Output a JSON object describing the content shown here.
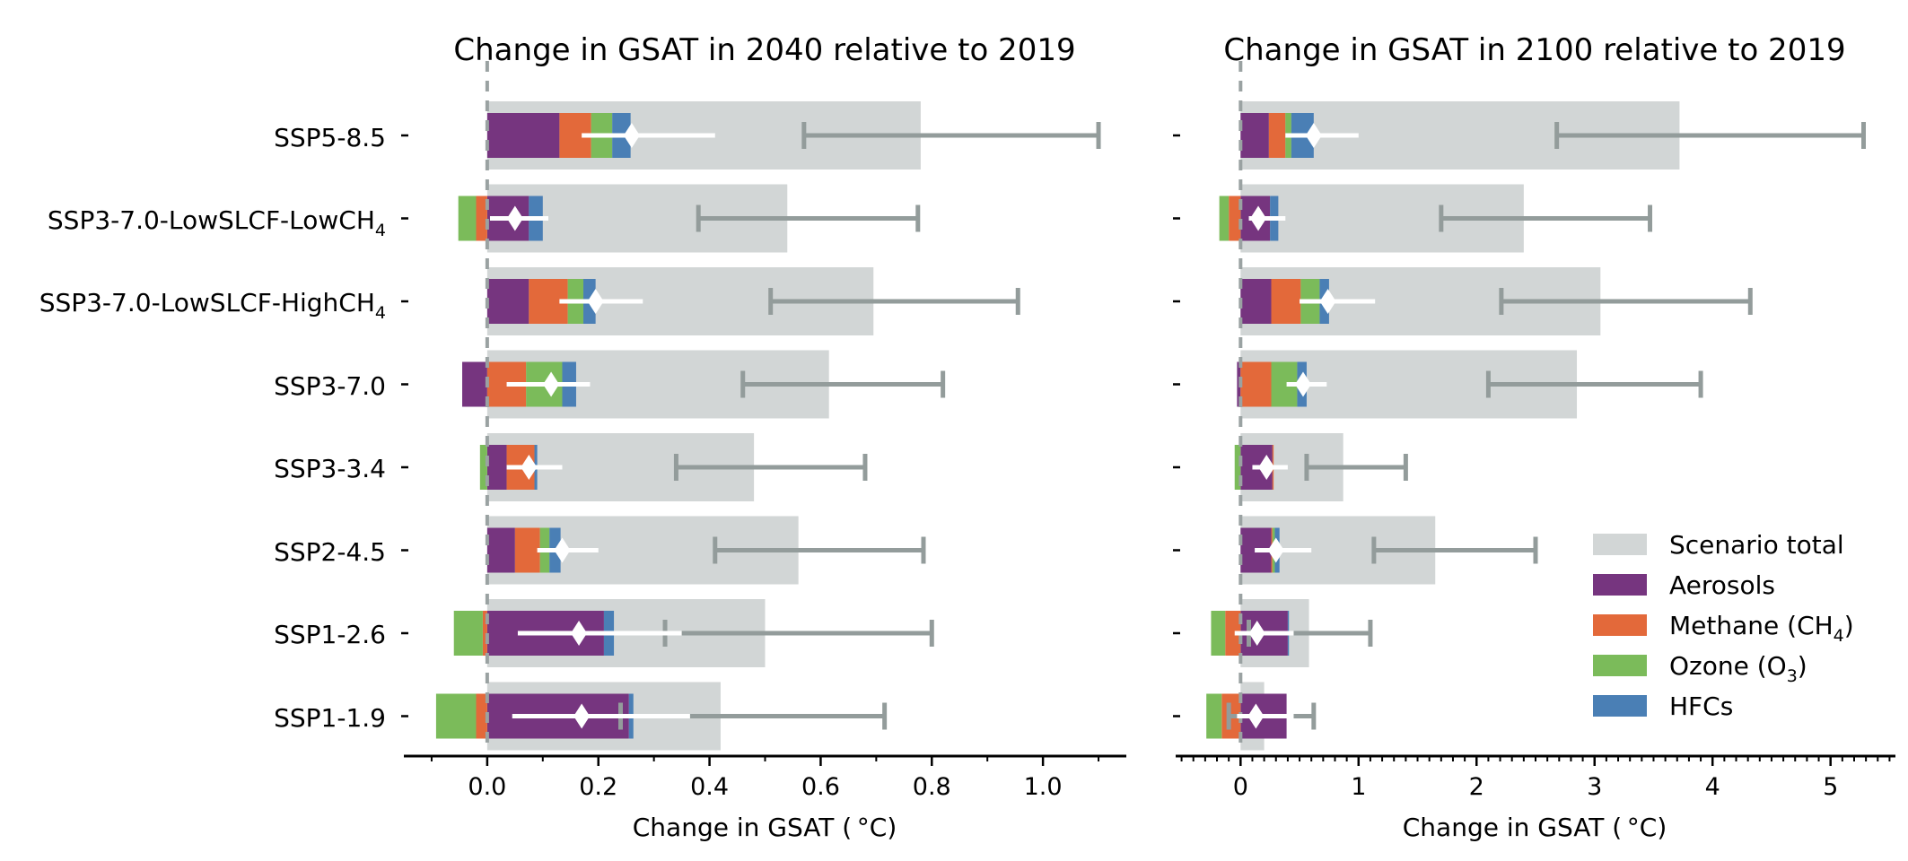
{
  "chart_data": {
    "type": "bar",
    "orientation": "horizontal",
    "stacked": true,
    "categories": [
      {
        "base": "SSP5-8.5",
        "sub": ""
      },
      {
        "base": "SSP3-7.0-LowSLCF-LowCH",
        "sub": "4"
      },
      {
        "base": "SSP3-7.0-LowSLCF-HighCH",
        "sub": "4"
      },
      {
        "base": "SSP3-7.0",
        "sub": ""
      },
      {
        "base": "SSP3-3.4",
        "sub": ""
      },
      {
        "base": "SSP2-4.5",
        "sub": ""
      },
      {
        "base": "SSP1-2.6",
        "sub": ""
      },
      {
        "base": "SSP1-1.9",
        "sub": ""
      }
    ],
    "colors": {
      "total": "#d2d6d6",
      "aerosols": "#76357f",
      "methane": "#e3693a",
      "ozone": "#7bbb5a",
      "hfcs": "#4a7fb5",
      "error": "#939c9b",
      "marker": "#ffffff",
      "zero_line": "#9aa2a2"
    },
    "legend": {
      "position": "lower-right",
      "entries": [
        {
          "key": "total",
          "label": "Scenario total",
          "sub": "",
          "suffix": ""
        },
        {
          "key": "aerosols",
          "label": "Aerosols",
          "sub": "",
          "suffix": ""
        },
        {
          "key": "methane",
          "label": "Methane (CH",
          "sub": "4",
          "suffix": ")"
        },
        {
          "key": "ozone",
          "label": "Ozone (O",
          "sub": "3",
          "suffix": ")"
        },
        {
          "key": "hfcs",
          "label": "HFCs",
          "sub": "",
          "suffix": ""
        }
      ]
    },
    "panels": [
      {
        "title": "Change in GSAT in 2040 relative to 2019",
        "xlabel": "Change in GSAT ( °C)",
        "xlim": [
          -0.15,
          1.15
        ],
        "ticks": [
          0.0,
          0.2,
          0.4,
          0.6,
          0.8,
          1.0
        ],
        "tick_labels": [
          "0.0",
          "0.2",
          "0.4",
          "0.6",
          "0.8",
          "1.0"
        ],
        "minor_ticks": [
          -0.1,
          0.1,
          0.3,
          0.5,
          0.7,
          0.9,
          1.1
        ],
        "series": [
          {
            "name": "Aerosols",
            "key": "aerosols",
            "values": [
              0.13,
              0.075,
              0.075,
              -0.045,
              0.035,
              0.05,
              0.21,
              0.255
            ]
          },
          {
            "name": "Methane (CH4)",
            "key": "methane",
            "values": [
              0.057,
              -0.02,
              0.07,
              0.07,
              0.05,
              0.045,
              -0.008,
              -0.02
            ]
          },
          {
            "name": "Ozone (O3)",
            "key": "ozone",
            "values": [
              0.038,
              -0.032,
              0.028,
              0.065,
              -0.013,
              0.017,
              -0.052,
              -0.072
            ]
          },
          {
            "name": "HFCs",
            "key": "hfcs",
            "values": [
              0.033,
              0.025,
              0.022,
              0.025,
              0.005,
              0.02,
              0.018,
              0.008
            ]
          }
        ],
        "scenario_total": [
          0.78,
          0.54,
          0.695,
          0.615,
          0.48,
          0.56,
          0.5,
          0.42
        ],
        "total_error": [
          [
            0.57,
            1.1
          ],
          [
            0.38,
            0.775
          ],
          [
            0.51,
            0.955
          ],
          [
            0.46,
            0.82
          ],
          [
            0.34,
            0.68
          ],
          [
            0.41,
            0.785
          ],
          [
            0.32,
            0.8
          ],
          [
            0.24,
            0.715
          ]
        ],
        "slcf_marker": [
          0.26,
          0.05,
          0.195,
          0.115,
          0.075,
          0.135,
          0.165,
          0.17
        ],
        "slcf_range": [
          [
            0.17,
            0.41
          ],
          [
            0.005,
            0.11
          ],
          [
            0.13,
            0.28
          ],
          [
            0.035,
            0.185
          ],
          [
            0.035,
            0.135
          ],
          [
            0.09,
            0.2
          ],
          [
            0.055,
            0.35
          ],
          [
            0.045,
            0.365
          ]
        ]
      },
      {
        "title": "Change in GSAT in 2100 relative to 2019",
        "xlabel": "Change in GSAT ( °C)",
        "xlim": [
          -0.55,
          5.55
        ],
        "ticks": [
          0,
          1,
          2,
          3,
          4,
          5
        ],
        "tick_labels": [
          "0",
          "1",
          "2",
          "3",
          "4",
          "5"
        ],
        "minor_ticks": [
          -0.5,
          -0.4,
          -0.3,
          -0.2,
          -0.1,
          0.1,
          0.2,
          0.3,
          0.4,
          0.5,
          0.6,
          0.7,
          0.8,
          0.9,
          1.1,
          1.2,
          1.3,
          1.4,
          1.5,
          1.6,
          1.7,
          1.8,
          1.9,
          2.1,
          2.2,
          2.3,
          2.4,
          2.5,
          2.6,
          2.7,
          2.8,
          2.9,
          3.1,
          3.2,
          3.3,
          3.4,
          3.5,
          3.6,
          3.7,
          3.8,
          3.9,
          4.1,
          4.2,
          4.3,
          4.4,
          4.5,
          4.6,
          4.7,
          4.8,
          4.9,
          5.1,
          5.2,
          5.3,
          5.4,
          5.5
        ],
        "series": [
          {
            "name": "Aerosols",
            "key": "aerosols",
            "values": [
              0.24,
              0.25,
              0.26,
              -0.03,
              0.27,
              0.26,
              0.4,
              0.39
            ]
          },
          {
            "name": "Methane (CH4)",
            "key": "methane",
            "values": [
              0.14,
              -0.1,
              0.25,
              0.26,
              0.01,
              0.01,
              -0.13,
              -0.16
            ]
          },
          {
            "name": "Ozone (O3)",
            "key": "ozone",
            "values": [
              0.05,
              -0.08,
              0.16,
              0.22,
              -0.05,
              0.02,
              -0.12,
              -0.13
            ]
          },
          {
            "name": "HFCs",
            "key": "hfcs",
            "values": [
              0.19,
              0.07,
              0.08,
              0.08,
              0.0,
              0.04,
              0.01,
              0.0
            ]
          },
          {
            "name": "",
            "key": "unused",
            "values": []
          }
        ],
        "scenario_total": [
          3.72,
          2.4,
          3.05,
          2.85,
          0.87,
          1.65,
          0.58,
          0.2
        ],
        "total_error": [
          [
            2.68,
            5.28
          ],
          [
            1.7,
            3.47
          ],
          [
            2.21,
            4.32
          ],
          [
            2.1,
            3.9
          ],
          [
            0.56,
            1.4
          ],
          [
            1.13,
            2.5
          ],
          [
            0.07,
            1.1
          ],
          [
            -0.1,
            0.62
          ]
        ],
        "slcf_marker": [
          0.62,
          0.15,
          0.74,
          0.53,
          0.22,
          0.3,
          0.14,
          0.13
        ],
        "slcf_range": [
          [
            0.38,
            1.0
          ],
          [
            0.07,
            0.38
          ],
          [
            0.5,
            1.14
          ],
          [
            0.39,
            0.73
          ],
          [
            0.1,
            0.4
          ],
          [
            0.12,
            0.6
          ],
          [
            -0.05,
            0.45
          ],
          [
            -0.03,
            0.45
          ]
        ]
      }
    ]
  }
}
